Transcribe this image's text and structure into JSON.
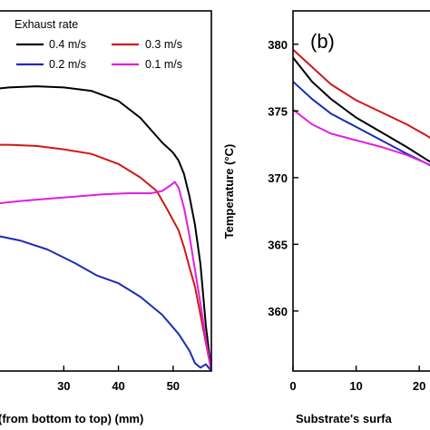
{
  "chart_data": [
    {
      "type": "line",
      "panel": "a",
      "xlabel": "(from bottom to top) (mm)",
      "ylabel": "",
      "xlim": [
        18,
        57
      ],
      "ylim": [
        354,
        386
      ],
      "xticks": [
        30,
        40,
        50
      ],
      "yticks": [],
      "legend": {
        "title": "Exhaust rate",
        "placement": "top-left",
        "entries": [
          "0.4 m/s",
          "0.3 m/s",
          "0.2 m/s",
          "0.1 m/s"
        ]
      },
      "series": [
        {
          "name": "0.4 m/s",
          "color": "#000000",
          "points": [
            [
              18,
              379.1
            ],
            [
              20,
              379.2
            ],
            [
              25,
              379.3
            ],
            [
              30,
              379.2
            ],
            [
              35,
              378.9
            ],
            [
              40,
              378.0
            ],
            [
              44,
              376.5
            ],
            [
              48,
              374.3
            ],
            [
              50,
              373.4
            ],
            [
              51,
              372.7
            ],
            [
              52,
              371.5
            ],
            [
              53,
              369.5
            ],
            [
              54,
              367.0
            ],
            [
              55,
              363.5
            ],
            [
              56,
              358.0
            ],
            [
              57,
              354.0
            ]
          ]
        },
        {
          "name": "0.3 m/s",
          "color": "#d01818",
          "points": [
            [
              18,
              374.1
            ],
            [
              20,
              374.1
            ],
            [
              25,
              374.0
            ],
            [
              30,
              373.7
            ],
            [
              35,
              373.3
            ],
            [
              40,
              372.4
            ],
            [
              44,
              371.2
            ],
            [
              47,
              370.0
            ],
            [
              49,
              368.3
            ],
            [
              51,
              366.5
            ],
            [
              52,
              365.0
            ],
            [
              53,
              363.2
            ],
            [
              54,
              361.5
            ],
            [
              55,
              359.0
            ],
            [
              56,
              356.5
            ],
            [
              57,
              354.0
            ]
          ]
        },
        {
          "name": "0.2 m/s",
          "color": "#1c2cb4",
          "points": [
            [
              18,
              366.0
            ],
            [
              22,
              365.6
            ],
            [
              27,
              364.8
            ],
            [
              32,
              363.6
            ],
            [
              36,
              362.5
            ],
            [
              40,
              361.8
            ],
            [
              44,
              360.6
            ],
            [
              48,
              359.0
            ],
            [
              51,
              357.3
            ],
            [
              53,
              355.8
            ],
            [
              54,
              354.7
            ],
            [
              55,
              354.3
            ],
            [
              56,
              354.6
            ],
            [
              57,
              354.0
            ]
          ]
        },
        {
          "name": "0.1 m/s",
          "color": "#e020e0",
          "points": [
            [
              18,
              368.9
            ],
            [
              22,
              369.1
            ],
            [
              27,
              369.3
            ],
            [
              32,
              369.5
            ],
            [
              37,
              369.7
            ],
            [
              42,
              369.8
            ],
            [
              46,
              369.8
            ],
            [
              48,
              370.0
            ],
            [
              49.5,
              370.5
            ],
            [
              50.3,
              370.8
            ],
            [
              51,
              370.3
            ],
            [
              52,
              368.5
            ],
            [
              53,
              366.0
            ],
            [
              54,
              363.0
            ],
            [
              55,
              360.0
            ],
            [
              56,
              356.8
            ],
            [
              57,
              354.0
            ]
          ]
        }
      ]
    },
    {
      "type": "line",
      "panel": "b",
      "panel_label": "(b)",
      "xlabel": "Substrate's surfa",
      "ylabel": "Temperature (°C)",
      "xlim": [
        0,
        23
      ],
      "ylim": [
        355.5,
        382.5
      ],
      "xticks": [
        0,
        10,
        20
      ],
      "xtick_labels": [
        "0",
        "10",
        "20"
      ],
      "yticks": [
        360,
        365,
        370,
        375,
        380
      ],
      "series": [
        {
          "color": "#d01818",
          "points": [
            [
              0,
              379.6
            ],
            [
              3,
              378.3
            ],
            [
              6,
              377.0
            ],
            [
              10,
              375.8
            ],
            [
              14,
              374.9
            ],
            [
              18,
              374.0
            ],
            [
              21,
              373.2
            ],
            [
              23,
              372.6
            ]
          ]
        },
        {
          "color": "#000000",
          "points": [
            [
              0,
              379.0
            ],
            [
              3,
              377.2
            ],
            [
              6,
              375.9
            ],
            [
              10,
              374.5
            ],
            [
              14,
              373.4
            ],
            [
              18,
              372.3
            ],
            [
              21,
              371.4
            ],
            [
              23,
              370.8
            ]
          ]
        },
        {
          "color": "#1c2cb4",
          "points": [
            [
              0,
              377.2
            ],
            [
              3,
              375.9
            ],
            [
              6,
              374.8
            ],
            [
              10,
              373.8
            ],
            [
              14,
              372.8
            ],
            [
              18,
              371.8
            ],
            [
              21,
              371.1
            ],
            [
              23,
              370.6
            ]
          ]
        },
        {
          "color": "#e020e0",
          "points": [
            [
              0,
              375.1
            ],
            [
              3,
              374.0
            ],
            [
              6,
              373.3
            ],
            [
              10,
              372.8
            ],
            [
              14,
              372.3
            ],
            [
              18,
              371.7
            ],
            [
              21,
              371.1
            ],
            [
              23,
              370.7
            ]
          ]
        }
      ]
    }
  ]
}
